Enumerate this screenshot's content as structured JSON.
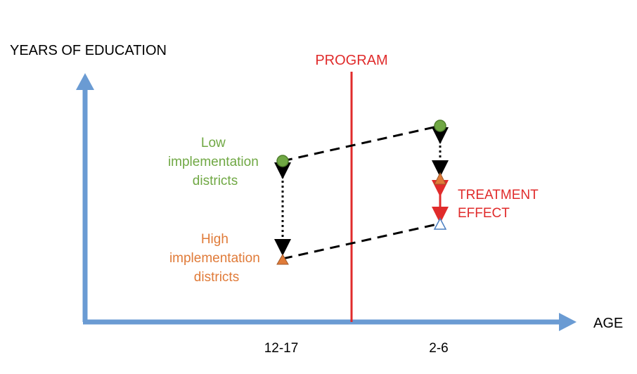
{
  "y_axis_label": "YEARS OF EDUCATION",
  "x_axis_label": "AGE",
  "program_label": "PROGRAM",
  "x_ticks": [
    "12-17",
    "2-6"
  ],
  "groups": {
    "low": {
      "lines": [
        "Low",
        "implementation",
        "districts"
      ]
    },
    "high": {
      "lines": [
        "High",
        "implementation",
        "districts"
      ]
    }
  },
  "treatment_effect": {
    "lines": [
      "TREATMENT",
      "EFFECT"
    ]
  },
  "colors": {
    "axis": "#6a9bd3",
    "program": "#e02b2b",
    "low_group": "#70a844",
    "high_group": "#e07b39",
    "treatment": "#e02b2b",
    "counterfactual_outline": "#4a7fc1",
    "dashed": "#000000"
  }
}
